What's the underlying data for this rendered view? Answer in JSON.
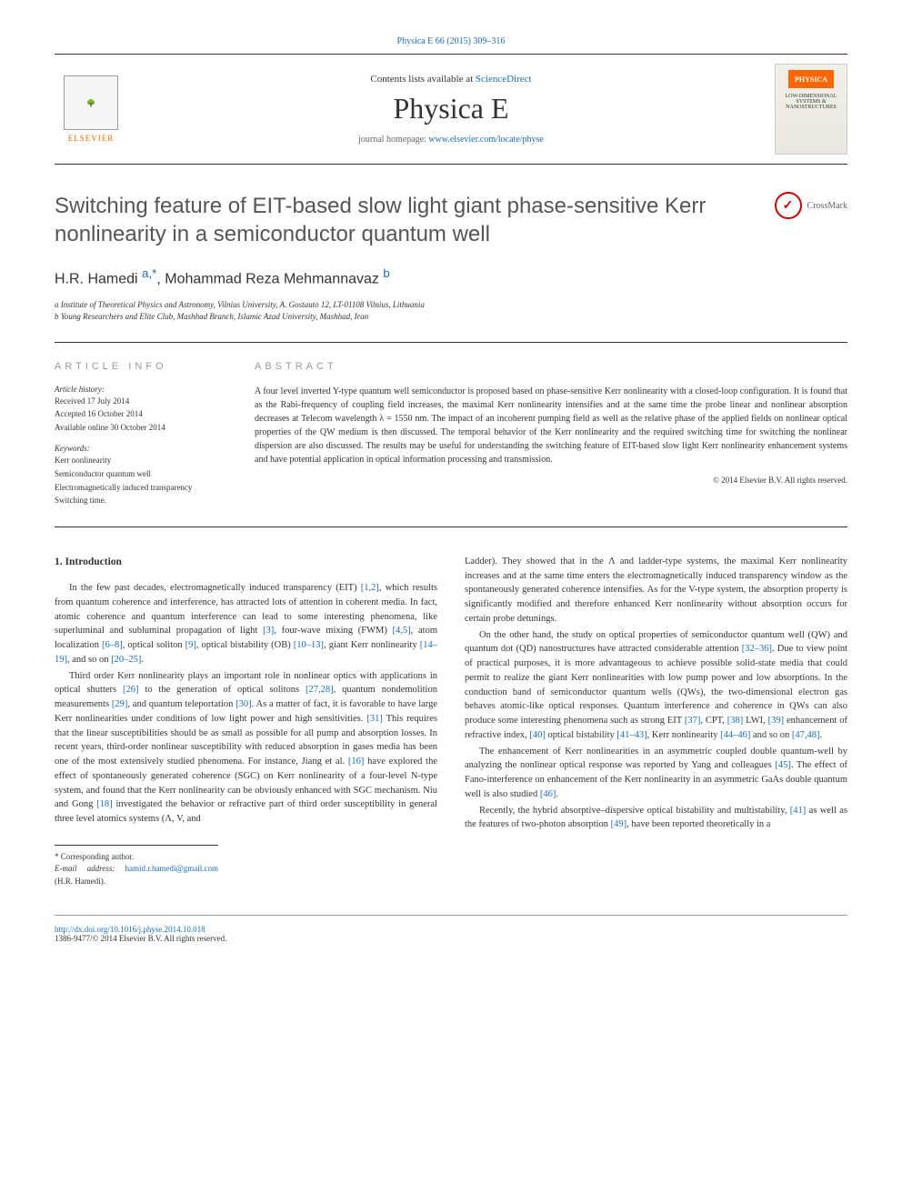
{
  "top_ref": "Physica E 66 (2015) 309–316",
  "header": {
    "contents_text": "Contents lists available at ",
    "contents_link": "ScienceDirect",
    "journal_name": "Physica E",
    "homepage_text": "journal homepage: ",
    "homepage_link": "www.elsevier.com/locate/physe",
    "elsevier_label": "ELSEVIER",
    "cover_brand": "PHYSICA",
    "cover_sub": "LOW-DIMENSIONAL SYSTEMS & NANOSTRUCTURES"
  },
  "article": {
    "title": "Switching feature of EIT-based slow light giant phase-sensitive Kerr nonlinearity in a semiconductor quantum well",
    "crossmark": "CrossMark",
    "authors_raw": "H.R. Hamedi ",
    "author_sup1": "a,",
    "author_star": "*",
    "authors_sep": ", Mohammad Reza Mehmannavaz ",
    "author_sup2": "b",
    "affil_a": "a Institute of Theoretical Physics and Astronomy, Vilnius University, A. Gostauto 12, LT-01108 Vilnius, Lithuania",
    "affil_b": "b Young Researchers and Elite Club, Mashhad Branch, Islamic Azad University, Mashhad, Iran"
  },
  "info": {
    "heading": "ARTICLE INFO",
    "history_label": "Article history:",
    "received": "Received 17 July 2014",
    "accepted": "Accepted 16 October 2014",
    "online": "Available online 30 October 2014",
    "keywords_label": "Keywords:",
    "kw1": "Kerr nonlinearity",
    "kw2": "Semiconductor quantum well",
    "kw3": "Electromagnetically induced transparency",
    "kw4": "Switching time."
  },
  "abstract": {
    "heading": "ABSTRACT",
    "text": "A four level inverted Y-type quantum well semiconductor is proposed based on phase-sensitive Kerr nonlinearity with a closed-loop configuration. It is found that as the Rabi-frequency of coupling field increases, the maximal Kerr nonlinearity intensifies and at the same time the probe linear and nonlinear absorption decreases at Telecom wavelength λ = 1550 nm. The impact of an incoherent pumping field as well as the relative phase of the applied fields on nonlinear optical properties of the QW medium is then discussed. The temporal behavior of the Kerr nonlinearity and the required switching time for switching the nonlinear dispersion are also discussed. The results may be useful for understanding the switching feature of EIT-based slow light Kerr nonlinearity enhancement systems and have potential application in optical information processing and transmission.",
    "copyright": "© 2014 Elsevier B.V. All rights reserved."
  },
  "body": {
    "section_heading": "1. Introduction",
    "col1": {
      "p1_a": "In the few past decades, electromagnetically induced transparency (EIT) ",
      "r1": "[1,2]",
      "p1_b": ", which results from quantum coherence and interference, has attracted lots of attention in coherent media. In fact, atomic coherence and quantum interference can lead to some interesting phenomena, like superluminal and subluminal propagation of light ",
      "r2": "[3]",
      "p1_c": ", four-wave mixing (FWM) ",
      "r3": "[4,5]",
      "p1_d": ", atom localization ",
      "r4": "[6–8]",
      "p1_e": ", optical soliton ",
      "r5": "[9]",
      "p1_f": ", optical bistability (OB) ",
      "r6": "[10–13]",
      "p1_g": ", giant Kerr nonlinearity ",
      "r7": "[14–19]",
      "p1_h": ", and so on ",
      "r8": "[20–25]",
      "p1_i": ".",
      "p2_a": "Third order Kerr nonlinearity plays an important role in nonlinear optics with applications in optical shutters ",
      "r9": "[26]",
      "p2_b": " to the generation of optical solitons ",
      "r10": "[27,28]",
      "p2_c": ", quantum nondemolition measurements ",
      "r11": "[29]",
      "p2_d": ", and quantum teleportation ",
      "r12": "[30]",
      "p2_e": ". As a matter of fact, it is favorable to have large Kerr nonlinearities under conditions of low light power and high sensitivities. ",
      "r13": "[31]",
      "p2_f": " This requires that the linear susceptibilities should be as small as possible for all pump and absorption losses. In recent years, third-order nonlinear susceptibility with reduced absorption in gases media has been one of the most extensively studied phenomena. For instance, Jiang et al. ",
      "r14": "[16]",
      "p2_g": " have explored the effect of spontaneously generated coherence (SGC) on Kerr nonlinearity of a four-level N-type system, and found that the Kerr nonlinearity can be obviously enhanced with SGC mechanism. Niu and Gong ",
      "r15": "[18]",
      "p2_h": " investigated the behavior or refractive part of third order susceptibility in general three level atomics systems (Λ, V, and"
    },
    "col2": {
      "p1": "Ladder). They showed that in the Λ and ladder-type systems, the maximal Kerr nonlinearity increases and at the same time enters the electromagnetically induced transparency window as the spontaneously generated coherence intensifies. As for the V-type system, the absorption property is significantly modified and therefore enhanced Kerr nonlinearity without absorption occurs for certain probe detunings.",
      "p2_a": "On the other hand, the study on optical properties of semiconductor quantum well (QW) and quantum dot (QD) nanostructures have attracted considerable attention ",
      "r1": "[32–36]",
      "p2_b": ". Due to view point of practical purposes, it is more advantageous to achieve possible solid-state media that could permit to realize the giant Kerr nonlinearities with low pump power and low absorptions. In the conduction band of semiconductor quantum wells (QWs), the two-dimensional electron gas behaves atomic-like optical responses. Quantum interference and coherence in QWs can also produce some interesting phenomena such as strong EIT ",
      "r2": "[37]",
      "p2_c": ", CPT, ",
      "r3": "[38]",
      "p2_d": " LWI, ",
      "r4": "[39]",
      "p2_e": " enhancement of refractive index, ",
      "r5": "[40]",
      "p2_f": " optical bistability ",
      "r6": "[41–43]",
      "p2_g": ", Kerr nonlinearity ",
      "r7": "[44–46]",
      "p2_h": " and so on ",
      "r8": "[47,48]",
      "p2_i": ".",
      "p3_a": "The enhancement of Kerr nonlinearities in an asymmetric coupled double quantum-well by analyzing the nonlinear optical response was reported by Yang and colleagues ",
      "r9": "[45]",
      "p3_b": ". The effect of Fano-interference on enhancement of the Kerr nonlinearity in an asymmetric GaAs double quantum well is also studied ",
      "r10": "[46]",
      "p3_c": ".",
      "p4_a": "Recently, the hybrid absorptive–dispersive optical bistability and multistability, ",
      "r11": "[41]",
      "p4_b": " as well as the features of two-photon absorption ",
      "r12": "[49]",
      "p4_c": ", have been reported theoretically in a"
    }
  },
  "footnote": {
    "corresp": "* Corresponding author.",
    "email_label": "E-mail address: ",
    "email": "hamid.r.hamedi@gmail.com",
    "email_suffix": " (H.R. Hamedi)."
  },
  "footer": {
    "doi": "http://dx.doi.org/10.1016/j.physe.2014.10.018",
    "issn": "1386-9477/© 2014 Elsevier B.V. All rights reserved."
  }
}
